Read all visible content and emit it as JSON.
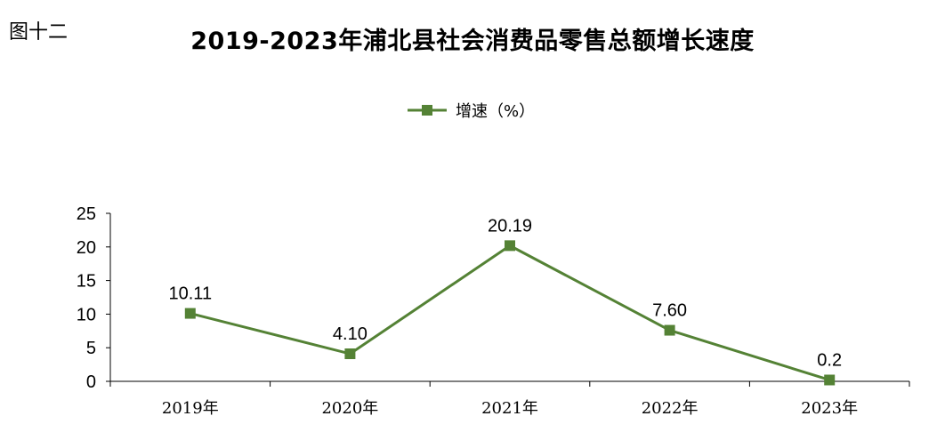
{
  "figure_label": "图十二",
  "chart_data": {
    "type": "line",
    "title": "2019-2023年浦北县社会消费品零售总额增长速度",
    "categories": [
      "2019年",
      "2020年",
      "2021年",
      "2022年",
      "2023年"
    ],
    "series": [
      {
        "name": "增速（%）",
        "values": [
          10.11,
          4.1,
          20.19,
          7.6,
          0.2
        ],
        "labels": [
          "10.11",
          "4.10",
          "20.19",
          "7.60",
          "0.2"
        ],
        "color": "#548235"
      }
    ],
    "ylim": [
      0,
      25
    ],
    "yticks": [
      "0",
      "5",
      "10",
      "15",
      "20",
      "25"
    ],
    "xlabel": "",
    "ylabel": "",
    "legend_position": "top",
    "grid": false
  }
}
